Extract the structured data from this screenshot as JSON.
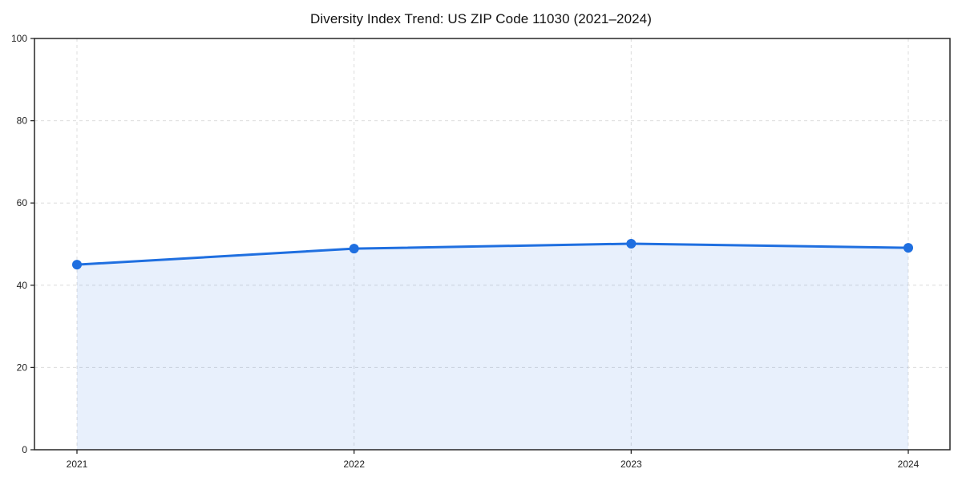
{
  "chart_data": {
    "type": "area",
    "title": "Diversity Index Trend: US ZIP Code 11030 (2021–2024)",
    "x_labels": [
      "2021",
      "2022",
      "2023",
      "2024"
    ],
    "series": [
      {
        "name": "Diversity Index",
        "values": [
          45.0,
          48.9,
          50.1,
          49.1
        ]
      }
    ],
    "xlabel": "",
    "ylabel": "",
    "ylim": [
      0,
      100
    ],
    "yticks": [
      0,
      20,
      40,
      60,
      80,
      100
    ],
    "grid": true,
    "grid_style": "dashed",
    "legend_position": "none",
    "colors": {
      "line": "#1f6fe0",
      "marker": "#1f6fe0",
      "fill": "rgba(31,111,224,0.10)",
      "gridline": "#dcdcdc",
      "spine": "#262626",
      "tick_label": "#222222",
      "title": "#111111",
      "background": "#ffffff"
    }
  }
}
